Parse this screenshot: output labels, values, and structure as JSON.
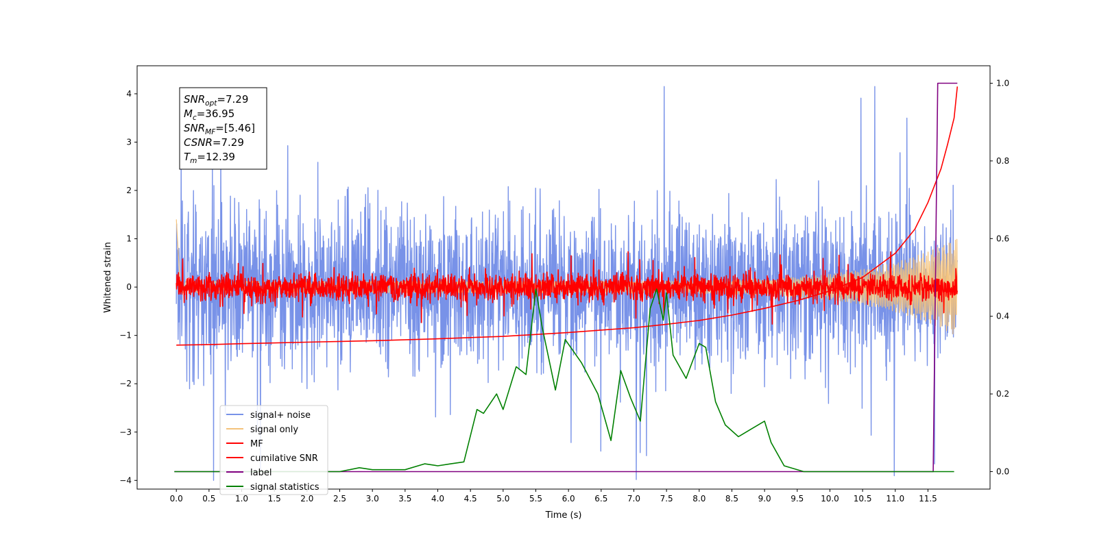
{
  "chart_data": {
    "type": "line",
    "xlabel": "Time (s)",
    "ylabel": "Whitened strain",
    "xlim": [
      -0.6,
      12.45
    ],
    "ylim": [
      -4.18,
      4.58
    ],
    "y2lim": [
      -0.045,
      1.045
    ],
    "xticks": [
      "0.0",
      "0.5",
      "1.0",
      "1.5",
      "2.0",
      "2.5",
      "3.0",
      "3.5",
      "4.0",
      "4.5",
      "5.0",
      "5.5",
      "6.0",
      "6.5",
      "7.0",
      "7.5",
      "8.0",
      "8.5",
      "9.0",
      "9.5",
      "10.0",
      "10.5",
      "11.0",
      "11.5"
    ],
    "yticks": [
      "−4",
      "−3",
      "−2",
      "−1",
      "0",
      "1",
      "2",
      "3",
      "4"
    ],
    "y2ticks": [
      "0.0",
      "0.2",
      "0.4",
      "0.6",
      "0.8",
      "1.0"
    ],
    "annotation": [
      {
        "base": "SNR",
        "sub": "opt",
        "value": "=7.29"
      },
      {
        "base": "M",
        "sub": "c",
        "value": "=36.95"
      },
      {
        "base": "SNR",
        "sub": "MF",
        "value": "=[5.46]"
      },
      {
        "base": "CSNR",
        "sub": "",
        "value": "=7.29"
      },
      {
        "base": "T",
        "sub": "m",
        "value": "=12.39"
      }
    ],
    "legend_position": "lower-left",
    "series": [
      {
        "name": "signal+ noise",
        "color": "#7892e8",
        "axis": "left",
        "style": "noise",
        "t_range": [
          0,
          11.95
        ],
        "mean": 0.0,
        "spread": 1.1,
        "y_range": [
          -4.0,
          4.15
        ]
      },
      {
        "name": "signal only",
        "color": "#f4c27a",
        "axis": "left",
        "style": "chirp",
        "t_range": [
          0,
          11.95
        ],
        "y_range": [
          -1.5,
          1.4
        ]
      },
      {
        "name": "MF",
        "color": "#ff0000",
        "axis": "left",
        "style": "noise",
        "t_range": [
          0,
          11.95
        ],
        "mean": 0.0,
        "spread": 0.2,
        "y_range": [
          -2.3,
          1.0
        ]
      },
      {
        "name": "cumilative SNR",
        "color": "#ff0000",
        "axis": "left",
        "t": [
          0.0,
          0.5,
          1,
          2,
          3,
          4,
          5,
          6,
          7,
          7.5,
          8,
          8.5,
          9,
          9.5,
          10,
          10.5,
          11,
          11.3,
          11.5,
          11.7,
          11.8,
          11.9,
          11.95
        ],
        "y": [
          -1.2,
          -1.19,
          -1.17,
          -1.14,
          -1.11,
          -1.07,
          -1.02,
          -0.94,
          -0.84,
          -0.77,
          -0.69,
          -0.58,
          -0.44,
          -0.28,
          -0.08,
          0.2,
          0.7,
          1.2,
          1.75,
          2.45,
          2.95,
          3.5,
          4.15
        ]
      },
      {
        "name": "label",
        "color": "#800080",
        "axis": "right",
        "t": [
          -0.03,
          11.58,
          11.65,
          11.95
        ],
        "y": [
          0.0,
          0.0,
          1.0,
          1.0
        ]
      },
      {
        "name": "signal statistics",
        "color": "#008000",
        "axis": "right",
        "t": [
          -0.03,
          0.5,
          1,
          1.5,
          2,
          2.5,
          2.8,
          3,
          3.5,
          3.8,
          4.0,
          4.2,
          4.4,
          4.6,
          4.7,
          4.9,
          5.0,
          5.2,
          5.35,
          5.5,
          5.6,
          5.8,
          5.95,
          6.2,
          6.45,
          6.65,
          6.8,
          6.95,
          7.1,
          7.25,
          7.35,
          7.45,
          7.5,
          7.6,
          7.8,
          8.0,
          8.1,
          8.25,
          8.4,
          8.6,
          8.8,
          9.0,
          9.1,
          9.3,
          9.6,
          10,
          10.5,
          11,
          11.9
        ],
        "y": [
          0.0,
          0.0,
          0.0,
          0.0,
          0.0,
          0.0,
          0.01,
          0.005,
          0.005,
          0.02,
          0.015,
          0.02,
          0.025,
          0.16,
          0.15,
          0.2,
          0.16,
          0.27,
          0.25,
          0.47,
          0.37,
          0.21,
          0.34,
          0.28,
          0.2,
          0.08,
          0.26,
          0.19,
          0.13,
          0.42,
          0.47,
          0.39,
          0.46,
          0.3,
          0.24,
          0.33,
          0.32,
          0.18,
          0.12,
          0.09,
          0.11,
          0.13,
          0.075,
          0.015,
          0.0,
          0.0,
          0.0,
          0.0,
          0.0
        ]
      }
    ]
  }
}
